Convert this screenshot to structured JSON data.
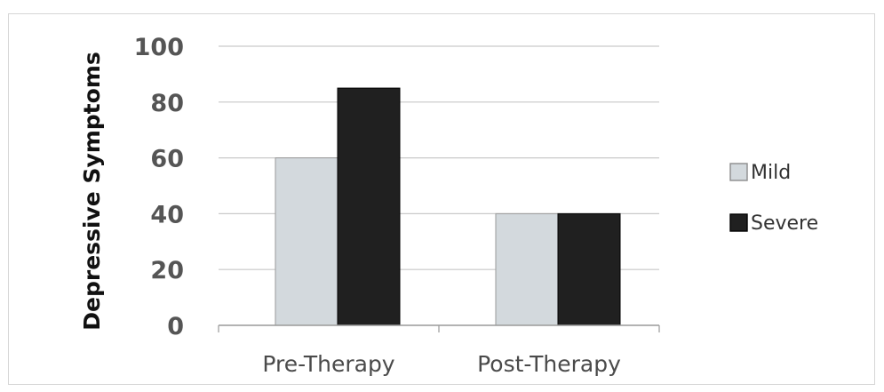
{
  "chart_data": {
    "type": "bar",
    "title": "",
    "xlabel": "",
    "ylabel": "Depressive Symptoms",
    "categories": [
      "Pre-Therapy",
      "Post-Therapy"
    ],
    "series": [
      {
        "name": "Mild",
        "values": [
          60,
          40
        ],
        "color": "#d3d9dd"
      },
      {
        "name": "Severe",
        "values": [
          85,
          40
        ],
        "color": "#202020"
      }
    ],
    "ylim": [
      0,
      100
    ],
    "yticks": [
      0,
      20,
      40,
      60,
      80,
      100
    ],
    "grid": true,
    "legend_position": "right"
  }
}
